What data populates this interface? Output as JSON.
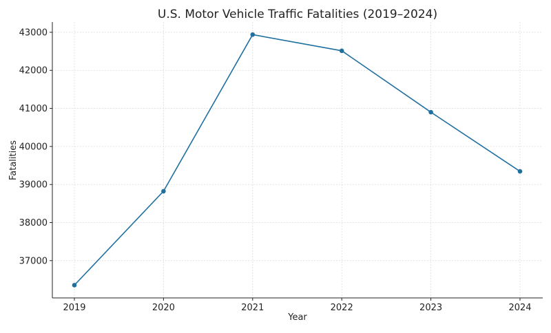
{
  "chart_data": {
    "type": "line",
    "title": "U.S. Motor Vehicle Traffic Fatalities (2019–2024)",
    "xlabel": "Year",
    "ylabel": "Fatalities",
    "x": [
      2019,
      2020,
      2021,
      2022,
      2023,
      2024
    ],
    "x_tick_labels": [
      "2019",
      "2020",
      "2021",
      "2022",
      "2023",
      "2024"
    ],
    "series": [
      {
        "values": [
          36355,
          38824,
          42939,
          42514,
          40901,
          39345
        ],
        "color": "#1f6f9f"
      }
    ],
    "ylim": [
      36020,
      43270
    ],
    "y_ticks": [
      37000,
      38000,
      39000,
      40000,
      41000,
      42000,
      43000
    ],
    "y_tick_labels": [
      "37000",
      "38000",
      "39000",
      "40000",
      "41000",
      "42000",
      "43000"
    ],
    "grid": true,
    "marker": "circle"
  }
}
